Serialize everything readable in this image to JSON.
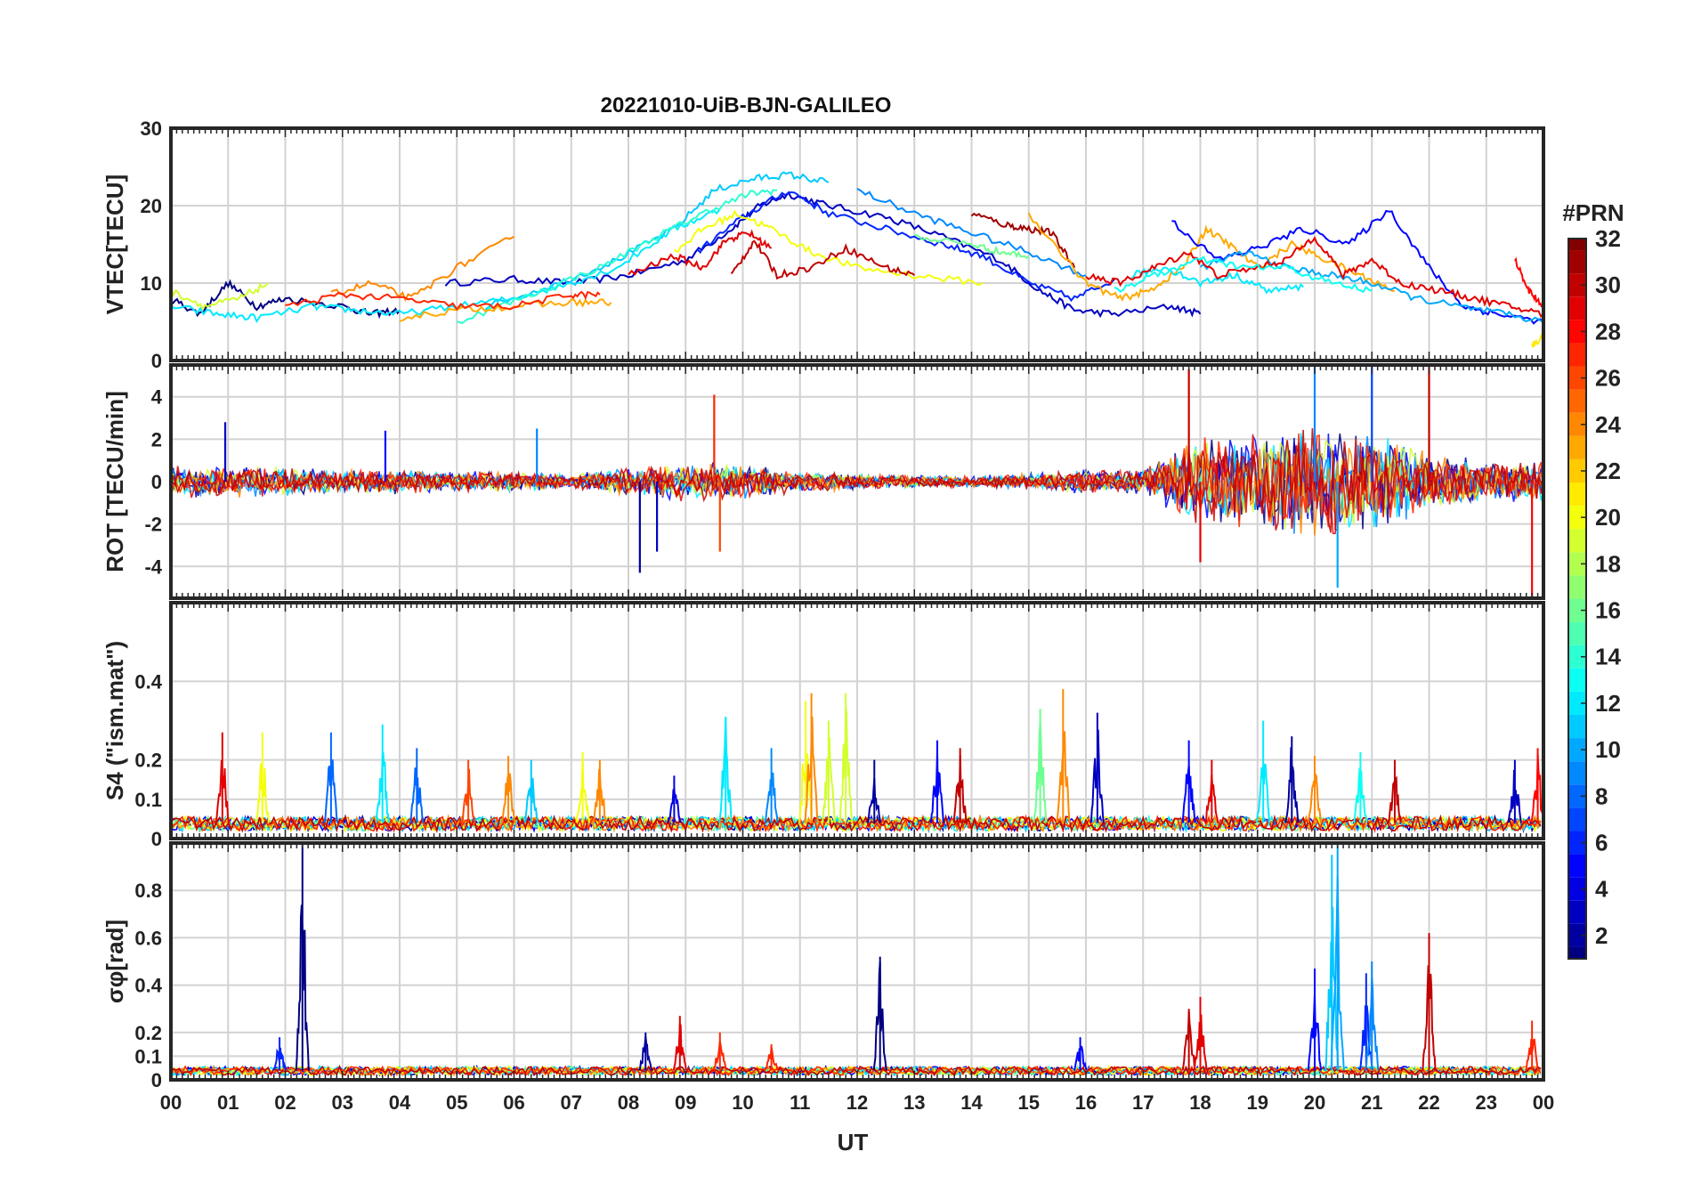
{
  "chart_data": {
    "type": "line",
    "title": "20221010-UiB-BJN-GALILEO",
    "xlabel": "UT",
    "x_ticks": [
      "00",
      "01",
      "02",
      "03",
      "04",
      "05",
      "06",
      "07",
      "08",
      "09",
      "10",
      "11",
      "12",
      "13",
      "14",
      "15",
      "16",
      "17",
      "18",
      "19",
      "20",
      "21",
      "22",
      "23",
      "00"
    ],
    "xlim": [
      0,
      24
    ],
    "colorbar": {
      "label": "#PRN",
      "range": [
        1,
        32
      ],
      "ticks": [
        2,
        4,
        6,
        8,
        10,
        12,
        14,
        16,
        18,
        20,
        22,
        24,
        26,
        28,
        30,
        32
      ],
      "colormap": "jet"
    },
    "panels": [
      {
        "name": "vtec",
        "ylabel": "VTEC[TECU]",
        "ylim": [
          0,
          30
        ],
        "yticks": [
          0,
          10,
          20,
          30
        ],
        "series": [
          {
            "prn": 3,
            "x": [
              4.8,
              6.0,
              7.0,
              8.0,
              9.0,
              9.8,
              10.3,
              10.8,
              11.5,
              12.5,
              13.5,
              14.5,
              15.2,
              15.8,
              16.5,
              17.5,
              18.0
            ],
            "values": [
              10,
              10.5,
              10,
              11,
              13,
              17,
              20,
              21.5,
              20,
              18.5,
              16,
              13,
              9,
              6.5,
              6,
              7,
              6
            ]
          },
          {
            "prn": 1,
            "x": [
              0.0,
              0.5,
              1.0,
              1.5,
              2.0,
              3.0,
              3.5,
              4.0
            ],
            "values": [
              8,
              6,
              10,
              7,
              8,
              7,
              6,
              6.5
            ]
          },
          {
            "prn": 6,
            "x": [
              9.2,
              10.0,
              10.8,
              11.5,
              12.5,
              13.5,
              14.2,
              15.0,
              15.8,
              16.5
            ],
            "values": [
              14,
              18.5,
              22,
              19,
              17,
              15,
              13.5,
              10,
              8,
              10.5
            ]
          },
          {
            "prn": 11,
            "x": [
              5.5,
              6.8,
              7.8,
              8.8,
              9.5,
              10.2,
              10.8,
              11.5
            ],
            "values": [
              7,
              10,
              13,
              17,
              22,
              23.5,
              24,
              23
            ]
          },
          {
            "prn": 12,
            "x": [
              0.0,
              0.8,
              1.5,
              2.5,
              3.2,
              4.0,
              5.0,
              6.0,
              7.0,
              7.8,
              8.8,
              9.6
            ],
            "values": [
              7,
              6,
              5.5,
              7,
              6.5,
              6,
              7,
              8,
              10,
              12,
              17,
              19.5
            ]
          },
          {
            "prn": 14,
            "x": [
              5.0,
              6.3,
              7.5,
              8.5,
              9.3,
              10.1,
              10.6
            ],
            "values": [
              5,
              8.5,
              12,
              16,
              19,
              21.5,
              22
            ]
          },
          {
            "prn": 9,
            "x": [
              12.0,
              13.0,
              14.0,
              15.0,
              16.0
            ],
            "values": [
              22,
              19,
              16.5,
              14,
              11
            ]
          },
          {
            "prn": 20,
            "x": [
              8.8,
              9.3,
              9.9,
              10.5,
              11.2,
              12.0,
              13.0,
              14.2
            ],
            "values": [
              14,
              17,
              19,
              17,
              14,
              12,
              11,
              10
            ]
          },
          {
            "prn": 16,
            "x": [
              13.0,
              14.0,
              14.5,
              15.0
            ],
            "values": [
              16,
              15,
              14,
              13.5
            ]
          },
          {
            "prn": 19,
            "x": [
              0.0,
              0.6,
              1.2,
              1.7
            ],
            "values": [
              9,
              7,
              8,
              10
            ]
          },
          {
            "prn": 24,
            "x": [
              2.8,
              3.5,
              4.2,
              5.0,
              6.0
            ],
            "values": [
              8.5,
              10,
              8,
              12,
              16
            ]
          },
          {
            "prn": 23,
            "x": [
              4.0,
              5.0,
              6.0,
              7.0,
              7.7
            ],
            "values": [
              5.5,
              6.5,
              7,
              7.5,
              7.5
            ]
          },
          {
            "prn": 27,
            "x": [
              2.0,
              3.0,
              4.0,
              5.0,
              6.0,
              7.0,
              7.5
            ],
            "values": [
              7,
              8.5,
              8,
              7,
              7,
              8.5,
              8.5
            ]
          },
          {
            "prn": 29,
            "x": [
              8.0,
              8.8,
              9.3,
              9.7,
              10.1,
              10.5
            ],
            "values": [
              11,
              13.5,
              12,
              15.5,
              16.5,
              14.5
            ]
          },
          {
            "prn": 30,
            "x": [
              9.8,
              10.2,
              10.6,
              11.2,
              11.8,
              12.5,
              13.0
            ],
            "values": [
              11,
              15.5,
              11,
              12,
              14.5,
              12,
              11
            ]
          },
          {
            "prn": 31,
            "x": [
              14.0,
              14.6,
              15.0,
              15.4,
              15.8
            ],
            "values": [
              19,
              17.5,
              17,
              16.5,
              12
            ]
          },
          {
            "prn": 23,
            "x": [
              15.0,
              16.0,
              16.6,
              17.1,
              17.7,
              18.1,
              18.5,
              19.0,
              19.6,
              20.2,
              20.8,
              21.4
            ],
            "values": [
              19,
              10,
              8,
              9,
              12,
              17,
              15,
              12,
              15,
              13,
              11,
              9
            ]
          },
          {
            "prn": 5,
            "x": [
              17.5,
              18.3,
              19.0,
              19.8,
              20.6,
              21.3,
              22.0,
              22.6,
              23.2,
              24.0
            ],
            "values": [
              18,
              13,
              14.5,
              17,
              15,
              19.5,
              12,
              7,
              6,
              5
            ]
          },
          {
            "prn": 10,
            "x": [
              18.0,
              18.8,
              19.5,
              20.3,
              21.0,
              21.8,
              22.5,
              23.3,
              24.0
            ],
            "values": [
              12,
              14,
              12,
              11,
              10,
              8,
              7,
              6,
              5
            ]
          },
          {
            "prn": 12,
            "x": [
              16.8,
              17.4,
              18.0,
              18.6,
              19.2,
              19.8
            ],
            "values": [
              11,
              12,
              10,
              11,
              9,
              9.5
            ]
          },
          {
            "prn": 29,
            "x": [
              16.0,
              16.6,
              17.2,
              17.8,
              18.3,
              19.0,
              19.5,
              20.0,
              20.5,
              21.0,
              21.5,
              22.2,
              22.8,
              23.4,
              24.0
            ],
            "values": [
              11,
              10,
              12,
              14,
              11,
              12,
              13,
              16,
              11,
              13,
              10,
              9,
              8,
              7,
              6
            ]
          },
          {
            "prn": 28,
            "x": [
              23.5,
              23.75,
              24.0
            ],
            "values": [
              13,
              9,
              7
            ]
          },
          {
            "prn": 21,
            "x": [
              23.8,
              24.0
            ],
            "values": [
              2,
              3
            ]
          },
          {
            "prn": 13,
            "x": [
              16.5,
              17.2,
              18.0,
              18.8,
              19.5,
              20.3,
              21.0
            ],
            "values": [
              9,
              11,
              13,
              12,
              12,
              10,
              9
            ]
          }
        ]
      },
      {
        "name": "rot",
        "ylabel": "ROT [TECU/min]",
        "ylim": [
          -5.5,
          5.5
        ],
        "yticks": [
          -4,
          -2,
          0,
          2,
          4
        ],
        "noise_profile": {
          "x": [
            0,
            1,
            2,
            3,
            4,
            5,
            6,
            7,
            8,
            9,
            10,
            11,
            12,
            13,
            14,
            15,
            16,
            17,
            17.5,
            18,
            19,
            20,
            21,
            22,
            23,
            24
          ],
          "amplitude": [
            0.8,
            0.8,
            0.7,
            0.6,
            0.6,
            0.5,
            0.5,
            0.4,
            0.7,
            1.0,
            0.9,
            0.5,
            0.4,
            0.3,
            0.3,
            0.4,
            0.6,
            0.6,
            1.4,
            2.2,
            2.4,
            3.0,
            2.5,
            1.5,
            1.0,
            1.0
          ]
        },
        "spikes": [
          {
            "x": 0.95,
            "value": 2.8,
            "prn": 3
          },
          {
            "x": 3.75,
            "value": 2.4,
            "prn": 5
          },
          {
            "x": 6.4,
            "value": 2.5,
            "prn": 9
          },
          {
            "x": 8.2,
            "value": -4.3,
            "prn": 2
          },
          {
            "x": 8.5,
            "value": -3.3,
            "prn": 3
          },
          {
            "x": 9.5,
            "value": 4.1,
            "prn": 27
          },
          {
            "x": 9.6,
            "value": -3.3,
            "prn": 26
          },
          {
            "x": 17.8,
            "value": 5.3,
            "prn": 30
          },
          {
            "x": 18.0,
            "value": -3.8,
            "prn": 29
          },
          {
            "x": 20.0,
            "value": 5.5,
            "prn": 9
          },
          {
            "x": 20.4,
            "value": -5.0,
            "prn": 10
          },
          {
            "x": 21.0,
            "value": 5.5,
            "prn": 7
          },
          {
            "x": 22.0,
            "value": 5.5,
            "prn": 30
          },
          {
            "x": 23.8,
            "value": -5.5,
            "prn": 28
          }
        ]
      },
      {
        "name": "s4",
        "ylabel": "S4 (\"ism.mat\")",
        "ylim": [
          0,
          0.6
        ],
        "yticks": [
          0,
          0.1,
          0.2,
          0.4
        ],
        "baseline": 0.04,
        "spikes": [
          {
            "x": 0.9,
            "value": 0.27,
            "prn": 29
          },
          {
            "x": 1.6,
            "value": 0.27,
            "prn": 20
          },
          {
            "x": 2.8,
            "value": 0.27,
            "prn": 8
          },
          {
            "x": 3.7,
            "value": 0.29,
            "prn": 12
          },
          {
            "x": 4.3,
            "value": 0.23,
            "prn": 8
          },
          {
            "x": 5.2,
            "value": 0.2,
            "prn": 26
          },
          {
            "x": 5.9,
            "value": 0.21,
            "prn": 24
          },
          {
            "x": 6.3,
            "value": 0.2,
            "prn": 11
          },
          {
            "x": 7.2,
            "value": 0.22,
            "prn": 20
          },
          {
            "x": 7.5,
            "value": 0.2,
            "prn": 24
          },
          {
            "x": 8.8,
            "value": 0.16,
            "prn": 4
          },
          {
            "x": 9.7,
            "value": 0.31,
            "prn": 12
          },
          {
            "x": 10.5,
            "value": 0.23,
            "prn": 9
          },
          {
            "x": 11.1,
            "value": 0.35,
            "prn": 20
          },
          {
            "x": 11.2,
            "value": 0.37,
            "prn": 24
          },
          {
            "x": 11.5,
            "value": 0.3,
            "prn": 19
          },
          {
            "x": 11.8,
            "value": 0.37,
            "prn": 19
          },
          {
            "x": 12.3,
            "value": 0.2,
            "prn": 2
          },
          {
            "x": 13.4,
            "value": 0.25,
            "prn": 5
          },
          {
            "x": 13.8,
            "value": 0.23,
            "prn": 30
          },
          {
            "x": 15.2,
            "value": 0.33,
            "prn": 16
          },
          {
            "x": 15.6,
            "value": 0.38,
            "prn": 24
          },
          {
            "x": 16.2,
            "value": 0.32,
            "prn": 3
          },
          {
            "x": 17.8,
            "value": 0.25,
            "prn": 5
          },
          {
            "x": 18.2,
            "value": 0.2,
            "prn": 29
          },
          {
            "x": 19.1,
            "value": 0.3,
            "prn": 12
          },
          {
            "x": 19.6,
            "value": 0.26,
            "prn": 2
          },
          {
            "x": 20.0,
            "value": 0.21,
            "prn": 24
          },
          {
            "x": 20.8,
            "value": 0.22,
            "prn": 13
          },
          {
            "x": 21.4,
            "value": 0.2,
            "prn": 30
          },
          {
            "x": 23.5,
            "value": 0.2,
            "prn": 3
          },
          {
            "x": 23.9,
            "value": 0.23,
            "prn": 28
          }
        ]
      },
      {
        "name": "sigma_phi",
        "ylabel": "σφ[rad]",
        "ylim": [
          0,
          1.0
        ],
        "yticks": [
          0,
          0.1,
          0.2,
          0.4,
          0.6,
          0.8
        ],
        "baseline": 0.04,
        "spikes": [
          {
            "x": 1.9,
            "value": 0.18,
            "prn": 6
          },
          {
            "x": 2.3,
            "value": 1.0,
            "prn": 1
          },
          {
            "x": 8.3,
            "value": 0.2,
            "prn": 2
          },
          {
            "x": 8.9,
            "value": 0.27,
            "prn": 29
          },
          {
            "x": 9.6,
            "value": 0.2,
            "prn": 27
          },
          {
            "x": 10.5,
            "value": 0.15,
            "prn": 27
          },
          {
            "x": 12.4,
            "value": 0.52,
            "prn": 1
          },
          {
            "x": 15.9,
            "value": 0.18,
            "prn": 5
          },
          {
            "x": 17.8,
            "value": 0.3,
            "prn": 30
          },
          {
            "x": 18.0,
            "value": 0.35,
            "prn": 29
          },
          {
            "x": 20.0,
            "value": 0.47,
            "prn": 5
          },
          {
            "x": 20.3,
            "value": 0.95,
            "prn": 11
          },
          {
            "x": 20.4,
            "value": 1.0,
            "prn": 10
          },
          {
            "x": 20.9,
            "value": 0.45,
            "prn": 6
          },
          {
            "x": 21.0,
            "value": 0.5,
            "prn": 9
          },
          {
            "x": 22.0,
            "value": 0.62,
            "prn": 30
          },
          {
            "x": 23.8,
            "value": 0.25,
            "prn": 27
          }
        ]
      }
    ]
  }
}
